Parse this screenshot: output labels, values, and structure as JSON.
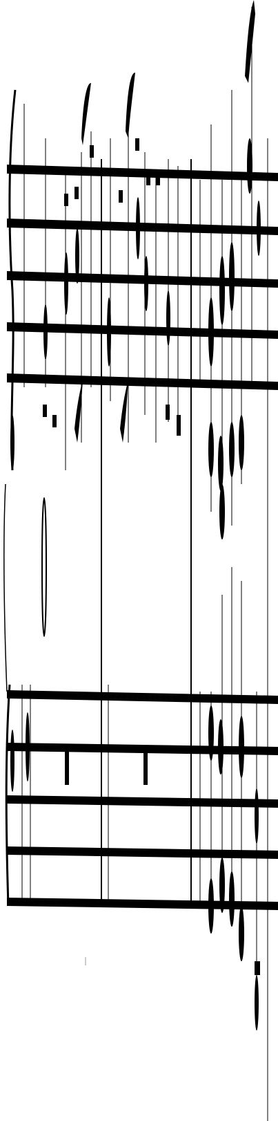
{
  "colors": {
    "background": "#ffffff",
    "ink": "#000000"
  },
  "score": {
    "systems": 2,
    "staff_lines_per_system": 5
  }
}
